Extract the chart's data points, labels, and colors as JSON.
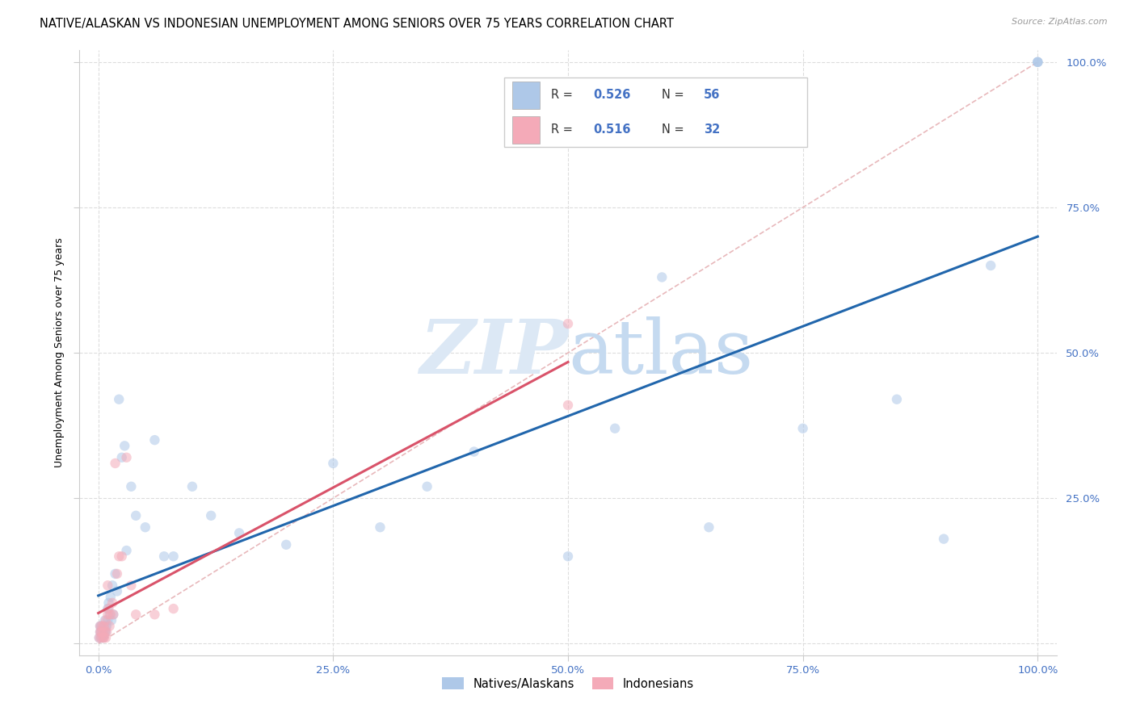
{
  "title": "NATIVE/ALASKAN VS INDONESIAN UNEMPLOYMENT AMONG SENIORS OVER 75 YEARS CORRELATION CHART",
  "source": "Source: ZipAtlas.com",
  "ylabel": "Unemployment Among Seniors over 75 years",
  "background_color": "#ffffff",
  "watermark_zip": "ZIP",
  "watermark_atlas": "atlas",
  "blue_color": "#aec8e8",
  "pink_color": "#f4aab8",
  "blue_line_color": "#2166ac",
  "pink_line_color": "#d9536a",
  "ref_line_color": "#e8b8bb",
  "ref_line_style": "--",
  "legend_r1": "R = 0.526",
  "legend_n1": "N = 56",
  "legend_r2": "R = 0.516",
  "legend_n2": "N = 32",
  "tick_color": "#4472c4",
  "marker_size": 80,
  "alpha": 0.55,
  "natives_x": [
    0.001,
    0.002,
    0.002,
    0.003,
    0.003,
    0.003,
    0.004,
    0.004,
    0.005,
    0.005,
    0.006,
    0.006,
    0.007,
    0.007,
    0.008,
    0.008,
    0.009,
    0.01,
    0.01,
    0.011,
    0.012,
    0.013,
    0.014,
    0.015,
    0.016,
    0.018,
    0.02,
    0.022,
    0.025,
    0.028,
    0.03,
    0.035,
    0.04,
    0.05,
    0.06,
    0.07,
    0.08,
    0.1,
    0.12,
    0.15,
    0.2,
    0.25,
    0.3,
    0.35,
    0.4,
    0.5,
    0.55,
    0.6,
    0.65,
    0.75,
    0.85,
    0.9,
    0.95,
    1.0,
    1.0,
    1.0
  ],
  "natives_y": [
    0.01,
    0.02,
    0.03,
    0.01,
    0.02,
    0.03,
    0.015,
    0.025,
    0.01,
    0.02,
    0.015,
    0.03,
    0.02,
    0.04,
    0.02,
    0.03,
    0.03,
    0.04,
    0.06,
    0.07,
    0.05,
    0.08,
    0.04,
    0.1,
    0.05,
    0.12,
    0.09,
    0.42,
    0.32,
    0.34,
    0.16,
    0.27,
    0.22,
    0.2,
    0.35,
    0.15,
    0.15,
    0.27,
    0.22,
    0.19,
    0.17,
    0.31,
    0.2,
    0.27,
    0.33,
    0.15,
    0.37,
    0.63,
    0.2,
    0.37,
    0.42,
    0.18,
    0.65,
    1.0,
    1.0,
    1.0
  ],
  "indonesian_x": [
    0.001,
    0.002,
    0.002,
    0.003,
    0.003,
    0.004,
    0.005,
    0.005,
    0.006,
    0.006,
    0.007,
    0.008,
    0.008,
    0.009,
    0.01,
    0.01,
    0.011,
    0.012,
    0.013,
    0.015,
    0.016,
    0.018,
    0.02,
    0.022,
    0.025,
    0.03,
    0.035,
    0.04,
    0.06,
    0.08,
    0.5,
    0.5
  ],
  "indonesian_y": [
    0.01,
    0.02,
    0.03,
    0.01,
    0.02,
    0.03,
    0.01,
    0.02,
    0.01,
    0.03,
    0.02,
    0.01,
    0.04,
    0.02,
    0.05,
    0.1,
    0.06,
    0.03,
    0.05,
    0.07,
    0.05,
    0.31,
    0.12,
    0.15,
    0.15,
    0.32,
    0.1,
    0.05,
    0.05,
    0.06,
    0.41,
    0.55
  ],
  "xlim": [
    0.0,
    1.0
  ],
  "ylim": [
    0.0,
    1.0
  ],
  "xtick_vals": [
    0.0,
    0.25,
    0.5,
    0.75,
    1.0
  ],
  "xtick_labels": [
    "0.0%",
    "25.0%",
    "50.0%",
    "75.0%",
    "100.0%"
  ],
  "ytick_vals": [
    0.0,
    0.25,
    0.5,
    0.75,
    1.0
  ],
  "ytick_labels": [
    "",
    "25.0%",
    "50.0%",
    "75.0%",
    "100.0%"
  ]
}
